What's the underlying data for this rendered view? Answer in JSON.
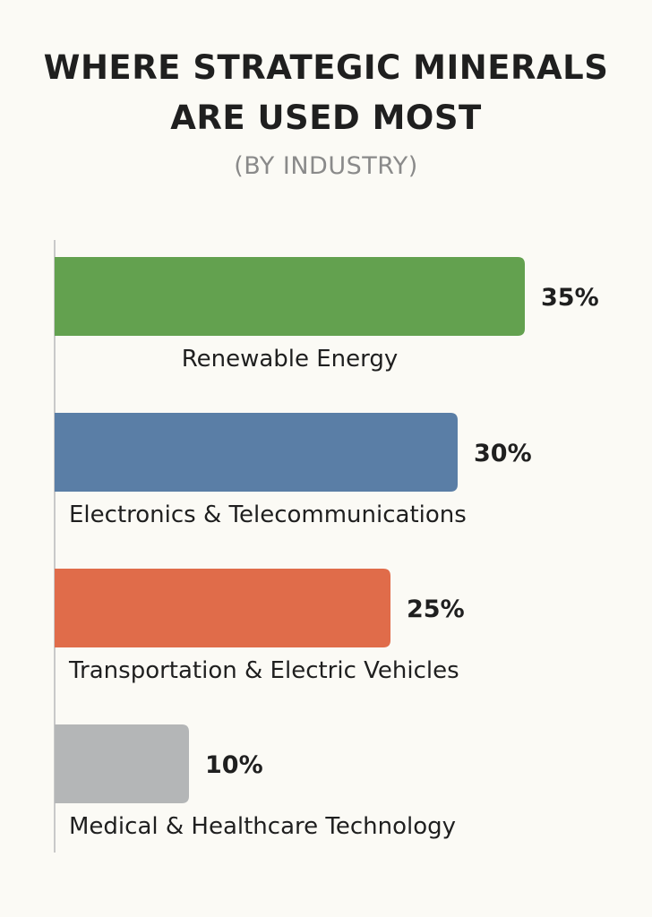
{
  "chart_data": {
    "type": "bar",
    "orientation": "horizontal",
    "title_lines": [
      "WHERE STRATEGIC MINERALS",
      "ARE USED MOST"
    ],
    "subtitle": "(BY INDUSTRY)",
    "categories": [
      "Renewable Energy",
      "Electronics & Telecommunications",
      "Transportation & Electric Vehicles",
      "Medical & Healthcare Technology"
    ],
    "values": [
      35,
      30,
      25,
      10
    ],
    "value_labels": [
      "35%",
      "30%",
      "25%",
      "10%"
    ],
    "colors": [
      "#63a14f",
      "#5a7ea6",
      "#e06c4a",
      "#b4b6b7"
    ],
    "unit": "%",
    "xlim": [
      0,
      35
    ],
    "grid": false,
    "legend": false
  }
}
